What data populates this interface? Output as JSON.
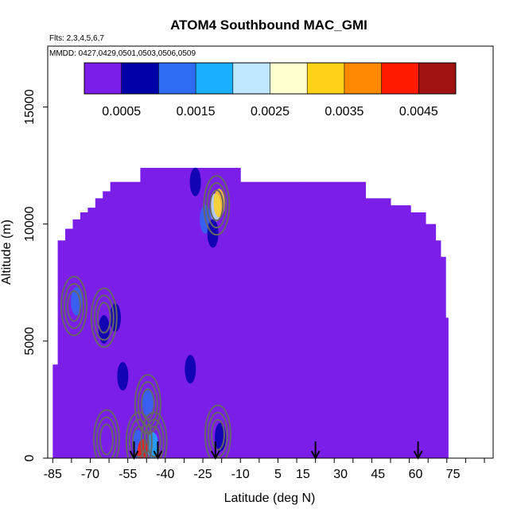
{
  "chart_data": {
    "type": "heatmap",
    "title": "ATOM4 Southbound MAC_GMI",
    "flights_note": "Flts: 2,3,4,5,6,7",
    "dates_note": "MMDD: 0427,0429,0501,0503,0506,0509",
    "xlabel": "Latitude (deg N)",
    "ylabel": "Altitude (m)",
    "xlim": [
      -87,
      91
    ],
    "ylim": [
      0,
      17600
    ],
    "x_ticks": [
      -85,
      -70,
      -55,
      -40,
      -25,
      -10,
      5,
      15,
      30,
      45,
      60,
      75
    ],
    "y_ticks": [
      0,
      5000,
      10000,
      15000
    ],
    "colorbar": {
      "min": 0,
      "max": 0.005,
      "tick_values": [
        0.0005,
        0.0015,
        0.0025,
        0.0035,
        0.0045
      ],
      "tick_labels": [
        "0.0005",
        "0.0015",
        "0.0025",
        "0.0035",
        "0.0045"
      ],
      "colors": [
        "#7b1fe8",
        "#0000a8",
        "#2d6bf0",
        "#1ab0ff",
        "#bfe6ff",
        "#ffffd0",
        "#ffd21a",
        "#ff8a00",
        "#ff1a00",
        "#9e1212"
      ]
    },
    "background_value_color": "#7b1fe8",
    "profile_columns": [
      {
        "lat_from": -85,
        "lat_to": -83,
        "alt_top": 4000
      },
      {
        "lat_from": -83,
        "lat_to": -80,
        "alt_top": 9300
      },
      {
        "lat_from": -80,
        "lat_to": -77,
        "alt_top": 9800
      },
      {
        "lat_from": -77,
        "lat_to": -74,
        "alt_top": 10200
      },
      {
        "lat_from": -74,
        "lat_to": -71,
        "alt_top": 10500
      },
      {
        "lat_from": -71,
        "lat_to": -68,
        "alt_top": 10700
      },
      {
        "lat_from": -68,
        "lat_to": -65,
        "alt_top": 11100
      },
      {
        "lat_from": -65,
        "lat_to": -62,
        "alt_top": 11400
      },
      {
        "lat_from": -62,
        "lat_to": -50,
        "alt_top": 11800
      },
      {
        "lat_from": -50,
        "lat_to": -40,
        "alt_top": 12400
      },
      {
        "lat_from": -40,
        "lat_to": -10,
        "alt_top": 12400
      },
      {
        "lat_from": -10,
        "lat_to": 15,
        "alt_top": 11800
      },
      {
        "lat_from": 15,
        "lat_to": 40,
        "alt_top": 11800
      },
      {
        "lat_from": 40,
        "lat_to": 50,
        "alt_top": 11100
      },
      {
        "lat_from": 50,
        "lat_to": 58,
        "alt_top": 10800
      },
      {
        "lat_from": 58,
        "lat_to": 64,
        "alt_top": 10500
      },
      {
        "lat_from": 64,
        "lat_to": 68,
        "alt_top": 10000
      },
      {
        "lat_from": 68,
        "lat_to": 70,
        "alt_top": 9300
      },
      {
        "lat_from": 70,
        "lat_to": 72,
        "alt_top": 8600
      },
      {
        "lat_from": 72,
        "lat_to": 73,
        "alt_top": 6000
      }
    ],
    "enhanced_regions": [
      {
        "lat": -75.5,
        "alt": 6700,
        "value": 0.0012
      },
      {
        "lat": -20,
        "alt": 10700,
        "value": 0.0022
      },
      {
        "lat": -18.5,
        "alt": 10900,
        "value": 0.003
      },
      {
        "lat": -24,
        "alt": 10200,
        "value": 0.0012
      },
      {
        "lat": -21,
        "alt": 9600,
        "value": 0.0009
      },
      {
        "lat": -28,
        "alt": 11800,
        "value": 0.0007
      },
      {
        "lat": -51,
        "alt": 600,
        "value": 0.0014
      },
      {
        "lat": -49,
        "alt": 200,
        "value": 0.004
      },
      {
        "lat": -47,
        "alt": 2400,
        "value": 0.001
      },
      {
        "lat": -45,
        "alt": 500,
        "value": 0.0016
      },
      {
        "lat": -18,
        "alt": 900,
        "value": 0.0008
      },
      {
        "lat": -64.5,
        "alt": 5500,
        "value": 0.0007
      },
      {
        "lat": -60,
        "alt": 6000,
        "value": 0.0006
      },
      {
        "lat": -57,
        "alt": 3500,
        "value": 0.0006
      },
      {
        "lat": -30,
        "alt": 3800,
        "value": 0.0005
      }
    ],
    "contour_centers": [
      {
        "lat": -76.5,
        "alt": 6500
      },
      {
        "lat": -19.5,
        "alt": 10800
      },
      {
        "lat": -19,
        "alt": 1000
      },
      {
        "lat": -50.5,
        "alt": 700
      },
      {
        "lat": -44.5,
        "alt": 700
      },
      {
        "lat": -47,
        "alt": 2300
      },
      {
        "lat": -64.5,
        "alt": 6000
      },
      {
        "lat": -63.5,
        "alt": 800
      }
    ],
    "arrow_latitudes": [
      -52.5,
      -43,
      -20,
      20,
      61
    ]
  }
}
